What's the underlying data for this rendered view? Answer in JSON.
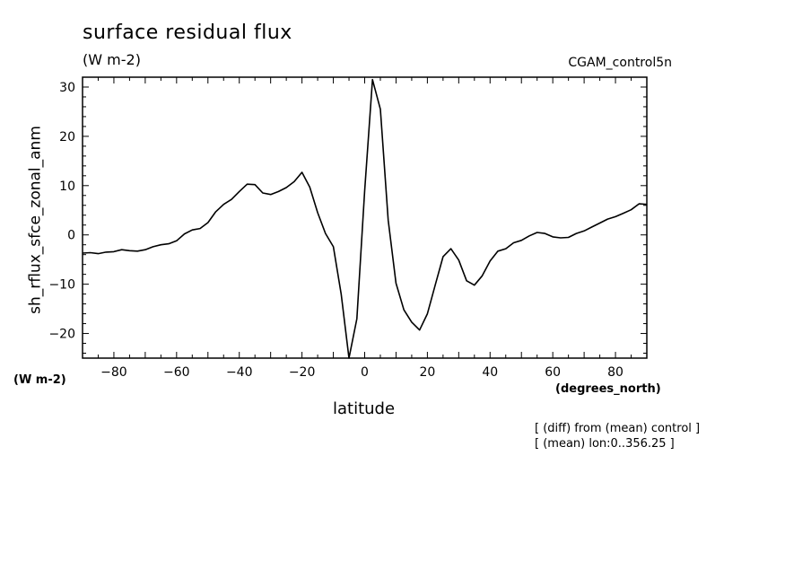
{
  "chart_data": {
    "type": "line",
    "title": "surface residual flux",
    "subtitle": "(W m-2)",
    "run_label": "CGAM_control5n",
    "xlabel": "latitude",
    "xlabel_units": "(degrees_north)",
    "ylabel": "sh_rflux_sfce_zonal_anm",
    "ylabel_units": "(W m-2)",
    "notes": [
      "[ (diff) from (mean) control ]",
      "[ (mean) lon:0..356.25 ]"
    ],
    "xlim": [
      -90,
      90
    ],
    "ylim": [
      -25,
      32
    ],
    "xticks": [
      -80,
      -60,
      -40,
      -20,
      0,
      20,
      40,
      60,
      80
    ],
    "xtick_labels": [
      "−80",
      "−60",
      "−40",
      "−20",
      "0",
      "20",
      "40",
      "60",
      "80"
    ],
    "yticks": [
      -20,
      -10,
      0,
      10,
      20,
      30
    ],
    "ytick_labels": [
      "−20",
      "−10",
      "0",
      "10",
      "20",
      "30"
    ],
    "grid": false,
    "series": [
      {
        "x": [
          -90,
          -87.5,
          -85,
          -82.5,
          -80,
          -77.5,
          -75,
          -72.5,
          -70,
          -67.5,
          -65,
          -62.5,
          -60,
          -57.5,
          -55,
          -52.5,
          -50,
          -47.5,
          -45,
          -42.5,
          -40,
          -37.5,
          -35,
          -32.5,
          -30,
          -27.5,
          -25,
          -22.5,
          -20,
          -17.5,
          -15,
          -12.5,
          -10,
          -7.5,
          -5,
          -2.5,
          0,
          2.5,
          5,
          7.5,
          10,
          12.5,
          15,
          17.5,
          20,
          22.5,
          25,
          27.5,
          30,
          32.5,
          35,
          37.5,
          40,
          42.5,
          45,
          47.5,
          50,
          52.5,
          55,
          57.5,
          60,
          62.5,
          65,
          67.5,
          70,
          72.5,
          75,
          77.5,
          80,
          82.5,
          85,
          87.5,
          90
        ],
        "y": [
          -3.7,
          -3.6,
          -3.8,
          -3.5,
          -3.4,
          -3.0,
          -3.2,
          -3.3,
          -3.0,
          -2.4,
          -2.0,
          -1.8,
          -1.2,
          0.2,
          1.0,
          1.3,
          2.5,
          4.7,
          6.2,
          7.2,
          8.8,
          10.3,
          10.2,
          8.5,
          8.2,
          8.8,
          9.6,
          10.8,
          12.7,
          9.7,
          4.5,
          0.3,
          -2.4,
          -12.0,
          -25.0,
          -17.0,
          9.0,
          31.5,
          25.5,
          3.0,
          -9.8,
          -15.2,
          -17.7,
          -19.3,
          -16.0,
          -10.2,
          -4.4,
          -2.8,
          -5.1,
          -9.3,
          -10.2,
          -8.3,
          -5.3,
          -3.3,
          -2.8,
          -1.6,
          -1.1,
          -0.2,
          0.5,
          0.3,
          -0.4,
          -0.6,
          -0.5,
          0.3,
          0.8,
          1.6,
          2.4,
          3.2,
          3.7,
          4.4,
          5.1,
          6.3,
          6.2
        ]
      }
    ]
  }
}
